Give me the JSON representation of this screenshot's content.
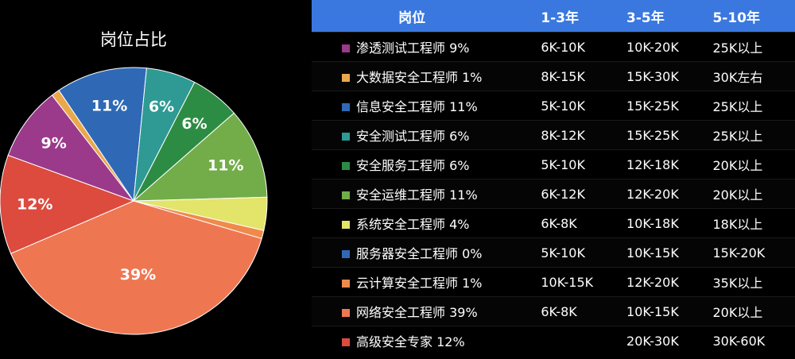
{
  "chart_data": {
    "type": "pie",
    "title": "岗位占比",
    "slices": [
      {
        "name": "渗透测试工程师",
        "value": 9,
        "label": "9%",
        "color": "#9b3a8b"
      },
      {
        "name": "大数据安全工程师",
        "value": 1,
        "label": "",
        "color": "#e9a84c"
      },
      {
        "name": "信息安全工程师",
        "value": 11,
        "label": "11%",
        "color": "#2f69b5"
      },
      {
        "name": "安全测试工程师",
        "value": 6,
        "label": "6%",
        "color": "#2e9a93"
      },
      {
        "name": "安全服务工程师",
        "value": 6,
        "label": "6%",
        "color": "#2d8c43"
      },
      {
        "name": "安全运维工程师",
        "value": 11,
        "label": "11%",
        "color": "#72ad49"
      },
      {
        "name": "系统安全工程师",
        "value": 4,
        "label": "",
        "color": "#e3e46a"
      },
      {
        "name": "服务器安全工程师",
        "value": 0,
        "label": "",
        "color": "#2f69b5"
      },
      {
        "name": "云计算安全工程师",
        "value": 1,
        "label": "",
        "color": "#f08a4b"
      },
      {
        "name": "网络安全工程师",
        "value": 39,
        "label": "39%",
        "color": "#ee7752"
      },
      {
        "name": "高级安全专家",
        "value": 12,
        "label": "12%",
        "color": "#dc4b3e"
      }
    ]
  },
  "table": {
    "headers": [
      "岗位",
      "1-3年",
      "3-5年",
      "5-10年"
    ],
    "rows": [
      {
        "name": "渗透测试工程师 9%",
        "color": "#9b3a8b",
        "y1_3": "6K-10K",
        "y3_5": "10K-20K",
        "y5_10": "25K以上"
      },
      {
        "name": "大数据安全工程师 1%",
        "color": "#e9a84c",
        "y1_3": "8K-15K",
        "y3_5": "15K-30K",
        "y5_10": "30K左右"
      },
      {
        "name": "信息安全工程师 11%",
        "color": "#2f69b5",
        "y1_3": "5K-10K",
        "y3_5": "15K-25K",
        "y5_10": "25K以上"
      },
      {
        "name": "安全测试工程师 6%",
        "color": "#2e9a93",
        "y1_3": "8K-12K",
        "y3_5": "15K-25K",
        "y5_10": "25K以上"
      },
      {
        "name": "安全服务工程师 6%",
        "color": "#2d8c43",
        "y1_3": "5K-10K",
        "y3_5": "12K-18K",
        "y5_10": "20K以上"
      },
      {
        "name": "安全运维工程师 11%",
        "color": "#72ad49",
        "y1_3": "6K-12K",
        "y3_5": "12K-20K",
        "y5_10": "20K以上"
      },
      {
        "name": "系统安全工程师 4%",
        "color": "#e3e46a",
        "y1_3": "6K-8K",
        "y3_5": "10K-18K",
        "y5_10": "18K以上"
      },
      {
        "name": "服务器安全工程师 0%",
        "color": "#2f69b5",
        "y1_3": "5K-10K",
        "y3_5": "10K-15K",
        "y5_10": "15K-20K"
      },
      {
        "name": "云计算安全工程师 1%",
        "color": "#f08a4b",
        "y1_3": "10K-15K",
        "y3_5": "12K-20K",
        "y5_10": "35K以上"
      },
      {
        "name": "网络安全工程师 39%",
        "color": "#ee7752",
        "y1_3": "6K-8K",
        "y3_5": "10K-15K",
        "y5_10": "20K以上"
      },
      {
        "name": "高级安全专家 12%",
        "color": "#dc4b3e",
        "y1_3": "",
        "y3_5": "20K-30K",
        "y5_10": "30K-60K"
      }
    ]
  }
}
